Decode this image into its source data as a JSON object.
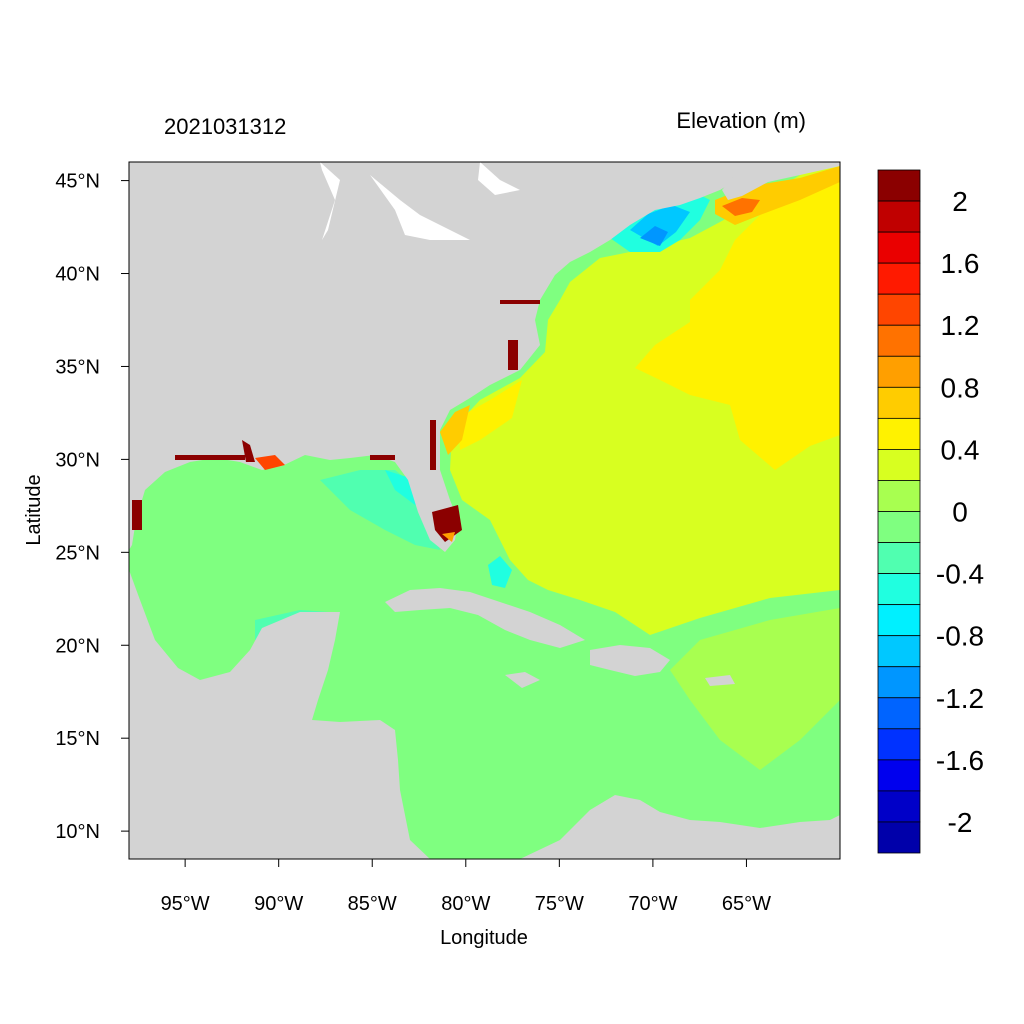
{
  "title_left": "2021031312",
  "title_right": "Elevation (m)",
  "x_axis": {
    "label": "Longitude",
    "ticks": [
      "95°W",
      "90°W",
      "85°W",
      "80°W",
      "75°W",
      "70°W",
      "65°W"
    ],
    "range": [
      -98,
      -60
    ]
  },
  "y_axis": {
    "label": "Latitude",
    "ticks": [
      "45°N",
      "40°N",
      "35°N",
      "30°N",
      "25°N",
      "20°N",
      "15°N",
      "10°N"
    ],
    "range": [
      8.5,
      46
    ]
  },
  "colorbar": {
    "labels": [
      "2",
      "1.6",
      "1.2",
      "0.8",
      "0.4",
      "0",
      "-0.4",
      "-0.8",
      "-1.2",
      "-1.6",
      "-2"
    ],
    "colors": [
      "#8b0000",
      "#c00000",
      "#ea0000",
      "#ff1a00",
      "#ff4500",
      "#ff7200",
      "#ff9f00",
      "#ffcc00",
      "#fff200",
      "#d8ff20",
      "#a8ff50",
      "#7fff80",
      "#50ffb0",
      "#20ffe0",
      "#00f0ff",
      "#00c8ff",
      "#0096ff",
      "#0064ff",
      "#0032ff",
      "#0000ee",
      "#0000c8",
      "#0000aa"
    ]
  },
  "land_color": "#d3d3d3"
}
